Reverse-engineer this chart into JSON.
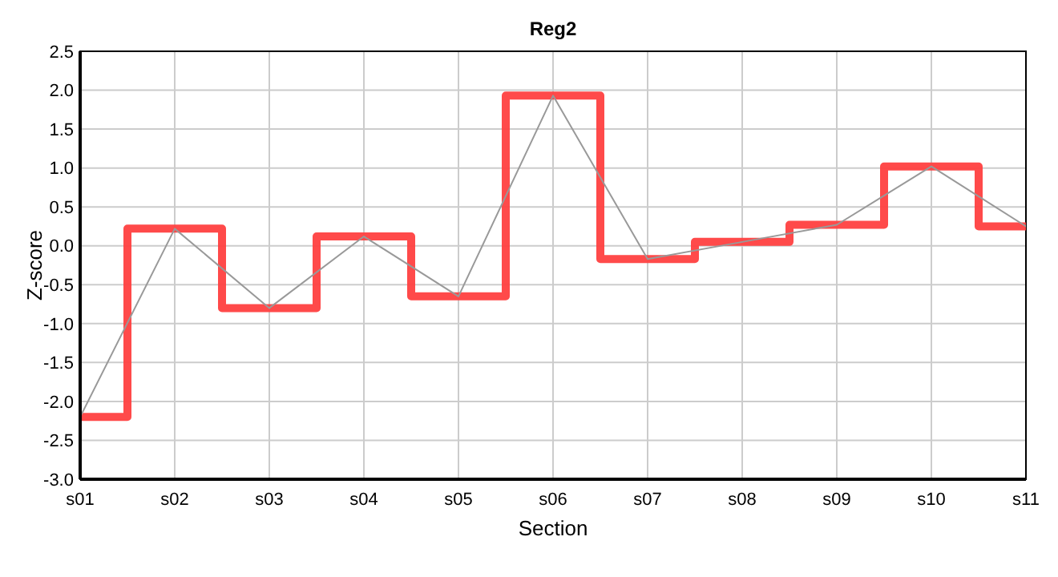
{
  "chart_data": {
    "type": "line",
    "title": "Reg2",
    "xlabel": "Section",
    "ylabel": "Z-score",
    "categories": [
      "s01",
      "s02",
      "s03",
      "s04",
      "s05",
      "s06",
      "s07",
      "s08",
      "s09",
      "s10",
      "s11"
    ],
    "series": [
      {
        "type": "step",
        "color": "#ff4040",
        "values": [
          -2.2,
          0.22,
          -0.8,
          0.12,
          -0.65,
          1.93,
          -0.17,
          0.05,
          0.27,
          1.02,
          0.25
        ]
      },
      {
        "color": "#999999",
        "values": [
          -2.2,
          0.22,
          -0.8,
          0.12,
          -0.65,
          1.93,
          -0.17,
          0.05,
          0.27,
          1.02,
          0.25
        ]
      }
    ],
    "ylim": [
      -3,
      2.5
    ],
    "yticks": [
      {
        "value": -3,
        "label": "-3.0"
      },
      {
        "value": -2.5,
        "label": "-2.5"
      },
      {
        "value": -2,
        "label": "-2.0"
      },
      {
        "value": -1.5,
        "label": "-1.5"
      },
      {
        "value": -1,
        "label": "-1.0"
      },
      {
        "value": -0.5,
        "label": "-0.5"
      },
      {
        "value": 0,
        "label": "0.0"
      },
      {
        "value": 0.5,
        "label": "0.5"
      },
      {
        "value": 1,
        "label": "1.0"
      },
      {
        "value": 1.5,
        "label": "1.5"
      },
      {
        "value": 2,
        "label": "2.0"
      },
      {
        "value": 2.5,
        "label": "2.5"
      }
    ],
    "grid": true,
    "marker": "none"
  }
}
